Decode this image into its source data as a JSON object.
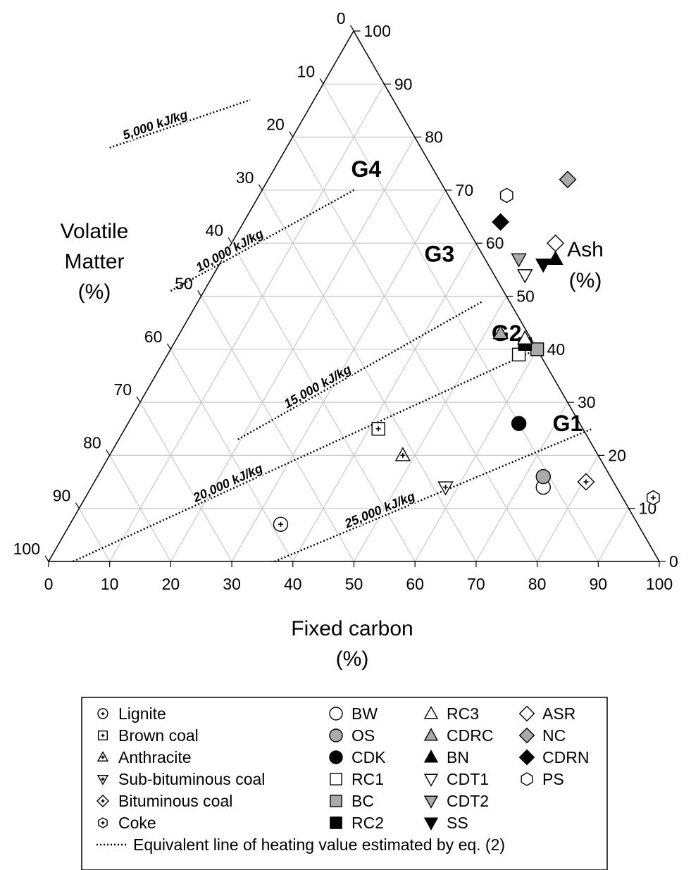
{
  "chart_data": {
    "type": "ternary-scatter",
    "axes": {
      "bottom": {
        "title": [
          "Fixed carbon",
          "(%)"
        ],
        "range": [
          0,
          100
        ]
      },
      "left": {
        "title": [
          "Volatile",
          "Matter",
          "(%)"
        ],
        "range": [
          0,
          100
        ]
      },
      "right": {
        "title": [
          "Ash",
          "(%)"
        ],
        "range": [
          0,
          100
        ]
      },
      "ticks": [
        0,
        10,
        20,
        30,
        40,
        50,
        60,
        70,
        80,
        90,
        100
      ]
    },
    "grid": true,
    "groups": [
      {
        "label": "G4",
        "fc": 52,
        "ash": 74
      },
      {
        "label": "G3",
        "fc": 64,
        "ash": 58
      },
      {
        "label": "G2",
        "fc": 75,
        "ash": 43
      },
      {
        "label": "G1",
        "fc": 85,
        "ash": 26
      }
    ],
    "isolines": [
      {
        "label": "5,000 kJ/kg",
        "a": [
          10,
          78
        ],
        "b": [
          33,
          87
        ]
      },
      {
        "label": "10,000 kJ/kg",
        "a": [
          20,
          51
        ],
        "b": [
          50,
          70
        ]
      },
      {
        "label": "15,000 kJ/kg",
        "a": [
          31,
          23
        ],
        "b": [
          71,
          49
        ]
      },
      {
        "label": "20,000 kJ/kg",
        "a": [
          4,
          0
        ],
        "b": [
          80,
          40
        ]
      },
      {
        "label": "25,000 kJ/kg",
        "a": [
          37,
          0
        ],
        "b": [
          89,
          25
        ]
      }
    ],
    "points": [
      {
        "name": "Lignite",
        "fc": 38,
        "ash": 7,
        "marker": "circle",
        "fill": "#ffffff",
        "cross": true
      },
      {
        "name": "Brown coal",
        "fc": 54,
        "ash": 25,
        "marker": "square",
        "fill": "#ffffff",
        "cross": true
      },
      {
        "name": "Anthracite",
        "fc": 58,
        "ash": 20,
        "marker": "triangle-up",
        "fill": "#ffffff",
        "cross": true
      },
      {
        "name": "Sub-bituminous coal",
        "fc": 65,
        "ash": 14,
        "marker": "triangle-down",
        "fill": "#ffffff",
        "cross": true
      },
      {
        "name": "Bituminous coal",
        "fc": 88,
        "ash": 15,
        "marker": "diamond",
        "fill": "#ffffff",
        "cross": true
      },
      {
        "name": "Coke",
        "fc": 99,
        "ash": 12,
        "marker": "hexagon",
        "fill": "#ffffff",
        "cross": true
      },
      {
        "name": "BW",
        "fc": 81,
        "ash": 14,
        "marker": "circle",
        "fill": "#ffffff"
      },
      {
        "name": "OS",
        "fc": 81,
        "ash": 16,
        "marker": "circle",
        "fill": "#aaaaaa"
      },
      {
        "name": "CDK",
        "fc": 77,
        "ash": 26,
        "marker": "circle",
        "fill": "#000000"
      },
      {
        "name": "RC1",
        "fc": 77,
        "ash": 39,
        "marker": "square",
        "fill": "#ffffff"
      },
      {
        "name": "BC",
        "fc": 80,
        "ash": 40,
        "marker": "square",
        "fill": "#aaaaaa"
      },
      {
        "name": "RC2",
        "fc": 78,
        "ash": 41,
        "marker": "square",
        "fill": "#000000"
      },
      {
        "name": "RC3",
        "fc": 78,
        "ash": 42,
        "marker": "triangle-up",
        "fill": "#ffffff"
      },
      {
        "name": "CDRC",
        "fc": 74,
        "ash": 43,
        "marker": "triangle-up",
        "fill": "#aaaaaa"
      },
      {
        "name": "BN",
        "fc": 83,
        "ash": 57,
        "marker": "triangle-up",
        "fill": "#000000"
      },
      {
        "name": "CDT1",
        "fc": 78,
        "ash": 54,
        "marker": "triangle-down",
        "fill": "#ffffff"
      },
      {
        "name": "CDT2",
        "fc": 77,
        "ash": 57,
        "marker": "triangle-down",
        "fill": "#aaaaaa"
      },
      {
        "name": "SS",
        "fc": 81,
        "ash": 56,
        "marker": "triangle-down",
        "fill": "#000000"
      },
      {
        "name": "ASR",
        "fc": 83,
        "ash": 60,
        "marker": "diamond",
        "fill": "#ffffff"
      },
      {
        "name": "NC",
        "fc": 85,
        "ash": 72,
        "marker": "diamond",
        "fill": "#aaaaaa"
      },
      {
        "name": "CDRN",
        "fc": 74,
        "ash": 64,
        "marker": "diamond",
        "fill": "#000000"
      },
      {
        "name": "PS",
        "fc": 75,
        "ash": 69,
        "marker": "hexagon",
        "fill": "#ffffff"
      }
    ],
    "legend": {
      "placement": "bottom",
      "columns": [
        [
          "Lignite",
          "Brown coal",
          "Anthracite",
          "Sub-bituminous coal",
          "Bituminous coal",
          "Coke"
        ],
        [
          "BW",
          "OS",
          "CDK",
          "RC1",
          "BC",
          "RC2"
        ],
        [
          "RC3",
          "CDRC",
          "BN",
          "CDT1",
          "CDT2",
          "SS"
        ],
        [
          "ASR",
          "NC",
          "CDRN",
          "PS"
        ]
      ],
      "line_entry": "Equivalent line of heating value estimated by eq. (2)"
    }
  }
}
